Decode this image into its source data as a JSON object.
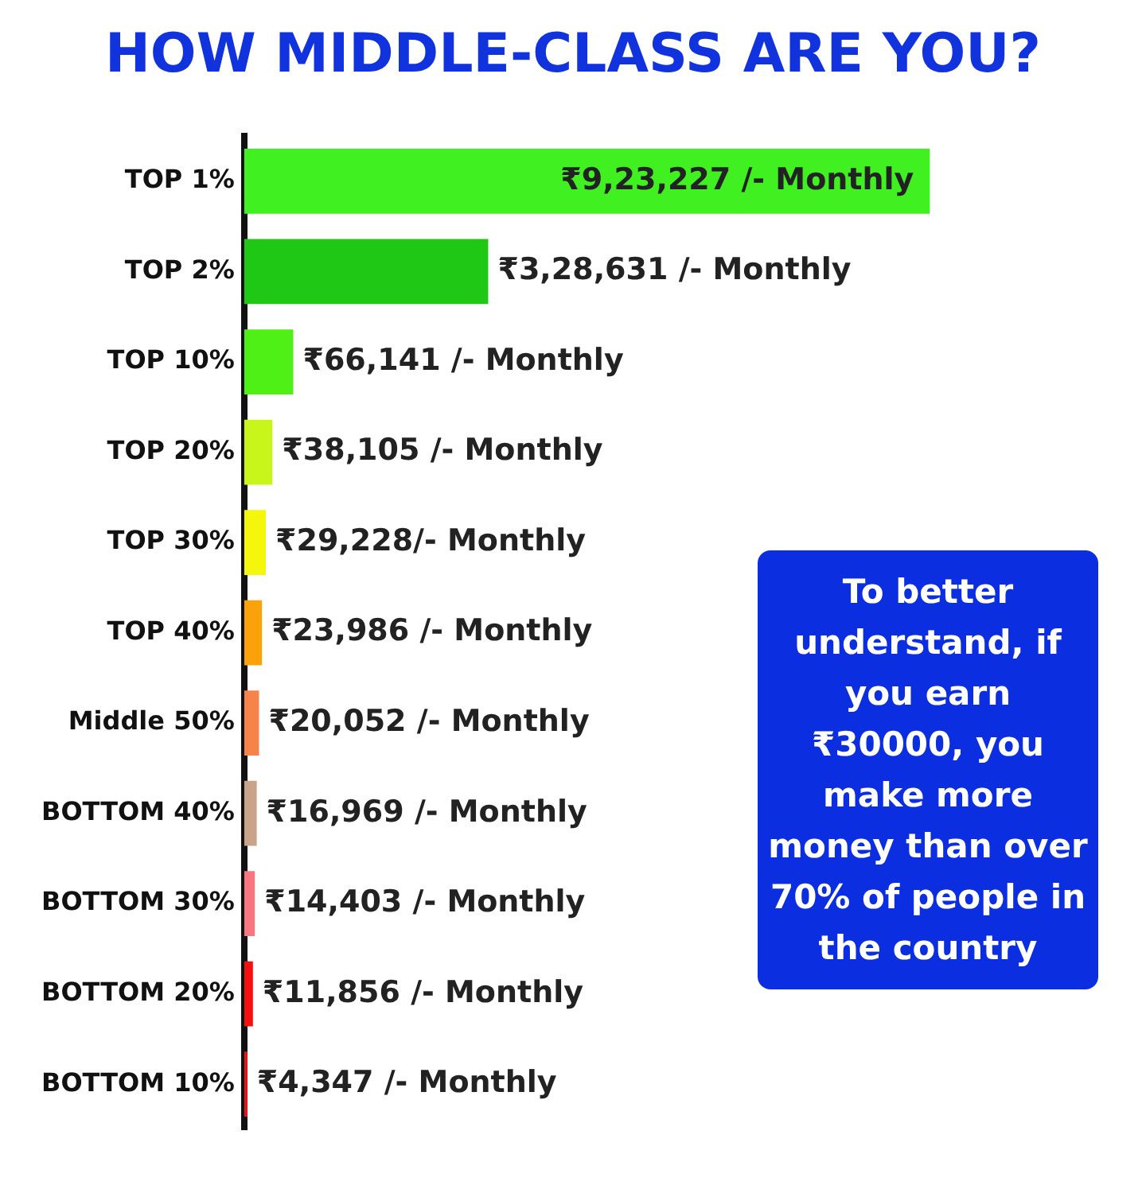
{
  "chart_data": {
    "type": "bar",
    "orientation": "horizontal",
    "title": "HOW MIDDLE-CLASS ARE YOU?",
    "categories": [
      "TOP 1%",
      "TOP 2%",
      "TOP 10%",
      "TOP 20%",
      "TOP 30%",
      "TOP 40%",
      "Middle 50%",
      "BOTTOM 40%",
      "BOTTOM 30%",
      "BOTTOM 20%",
      "BOTTOM 10%"
    ],
    "values": [
      923227,
      328631,
      66141,
      38105,
      29228,
      23986,
      20052,
      16969,
      14403,
      11856,
      4347
    ],
    "colors": [
      "#40f020",
      "#1fc814",
      "#4ef016",
      "#c8f51a",
      "#f4f60c",
      "#fba10a",
      "#f6834a",
      "#c9a48a",
      "#f8767f",
      "#f41010",
      "#ee1414"
    ],
    "value_labels": [
      "₹9,23,227 /- Monthly",
      "₹3,28,631 /- Monthly",
      "₹66,141 /- Monthly",
      "₹38,105 /- Monthly",
      "₹29,228/- Monthly",
      "₹23,986 /- Monthly",
      "₹20,052 /- Monthly",
      "₹16,969 /- Monthly",
      "₹14,403 /- Monthly",
      "₹11,856 /- Monthly",
      "₹4,347 /- Monthly"
    ],
    "annotations": [
      "To better understand, if you earn ₹30000, you make more money than over 70% of people in the country"
    ]
  }
}
